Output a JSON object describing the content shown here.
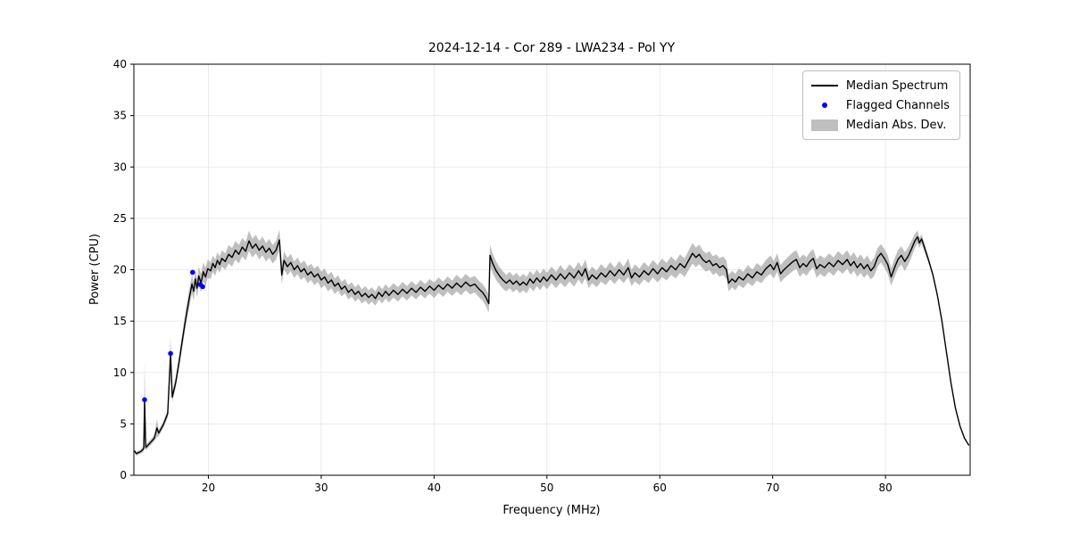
{
  "chart_data": {
    "type": "line",
    "title": "2024-12-14 - Cor 289 - LWA234 - Pol YY",
    "xlabel": "Frequency (MHz)",
    "ylabel": "Power (CPU)",
    "xlim": [
      13.4,
      87.5
    ],
    "ylim": [
      0,
      40
    ],
    "xticks": [
      20,
      30,
      40,
      50,
      60,
      70,
      80
    ],
    "yticks": [
      0,
      5,
      10,
      15,
      20,
      25,
      30,
      35,
      40
    ],
    "grid": true,
    "legend": [
      "Median Spectrum",
      "Flagged Channels",
      "Median Abs. Dev."
    ],
    "legend_position": "upper right",
    "colors": {
      "line": "#000000",
      "flagged": "#0000ff",
      "band": "#808080",
      "band_opacity": 0.5,
      "grid": "#e6e6e6",
      "spine": "#000000"
    },
    "series": {
      "median_spectrum_format": [
        "freq_mhz",
        "power_cpu",
        "mad_halfwidth"
      ],
      "median_spectrum": [
        [
          13.45,
          2.4,
          0
        ],
        [
          13.6,
          2.1,
          0.2
        ],
        [
          14.0,
          2.3,
          0.2
        ],
        [
          14.28,
          2.6,
          0.3
        ],
        [
          14.35,
          7.35,
          3.7
        ],
        [
          14.45,
          2.7,
          0.3
        ],
        [
          14.8,
          3.1,
          0.25
        ],
        [
          15.2,
          3.6,
          0.3
        ],
        [
          15.45,
          4.6,
          0.9
        ],
        [
          15.6,
          4.1,
          0.3
        ],
        [
          16.0,
          4.9,
          0.3
        ],
        [
          16.4,
          6.0,
          0.4
        ],
        [
          16.65,
          11.85,
          1.6
        ],
        [
          16.8,
          7.6,
          0.5
        ],
        [
          17.1,
          9.0,
          0.5
        ],
        [
          17.4,
          11.0,
          0.6
        ],
        [
          17.7,
          13.2,
          0.7
        ],
        [
          18.0,
          15.3,
          0.8
        ],
        [
          18.3,
          17.2,
          0.9
        ],
        [
          18.55,
          18.6,
          0.9
        ],
        [
          18.7,
          17.9,
          0.9
        ],
        [
          18.85,
          19.1,
          0.9
        ],
        [
          19.0,
          18.2,
          0.9
        ],
        [
          19.15,
          19.4,
          0.9
        ],
        [
          19.35,
          18.7,
          0.9
        ],
        [
          19.55,
          19.8,
          0.9
        ],
        [
          19.75,
          19.3,
          0.9
        ],
        [
          19.95,
          20.1,
          0.9
        ],
        [
          20.2,
          19.9,
          0.8
        ],
        [
          20.4,
          20.6,
          0.8
        ],
        [
          20.6,
          20.2,
          0.8
        ],
        [
          20.8,
          20.9,
          0.8
        ],
        [
          21.0,
          20.5,
          0.8
        ],
        [
          21.2,
          21.1,
          0.8
        ],
        [
          21.5,
          20.8,
          0.8
        ],
        [
          21.8,
          21.5,
          0.9
        ],
        [
          22.1,
          21.2,
          0.9
        ],
        [
          22.4,
          21.9,
          0.9
        ],
        [
          22.7,
          21.5,
          0.9
        ],
        [
          23.0,
          22.2,
          0.9
        ],
        [
          23.3,
          21.8,
          0.9
        ],
        [
          23.6,
          22.8,
          1.0
        ],
        [
          23.9,
          22.1,
          0.9
        ],
        [
          24.2,
          22.5,
          0.9
        ],
        [
          24.5,
          21.9,
          0.9
        ],
        [
          24.8,
          22.3,
          0.9
        ],
        [
          25.1,
          21.7,
          0.9
        ],
        [
          25.4,
          22.1,
          0.9
        ],
        [
          25.7,
          21.5,
          0.9
        ],
        [
          26.0,
          21.9,
          0.9
        ],
        [
          26.3,
          22.9,
          1.0
        ],
        [
          26.5,
          19.5,
          0.9
        ],
        [
          26.7,
          20.9,
          0.9
        ],
        [
          27.0,
          20.3,
          0.85
        ],
        [
          27.3,
          20.7,
          0.85
        ],
        [
          27.6,
          20.0,
          0.8
        ],
        [
          27.9,
          20.4,
          0.8
        ],
        [
          28.2,
          19.8,
          0.8
        ],
        [
          28.5,
          20.1,
          0.8
        ],
        [
          28.8,
          19.5,
          0.8
        ],
        [
          29.1,
          19.8,
          0.8
        ],
        [
          29.4,
          19.3,
          0.8
        ],
        [
          29.7,
          19.6,
          0.8
        ],
        [
          30.0,
          19.0,
          0.8
        ],
        [
          30.3,
          19.3,
          0.8
        ],
        [
          30.6,
          18.7,
          0.8
        ],
        [
          30.9,
          19.0,
          0.8
        ],
        [
          31.2,
          18.4,
          0.75
        ],
        [
          31.5,
          18.7,
          0.75
        ],
        [
          31.8,
          18.1,
          0.7
        ],
        [
          32.1,
          18.4,
          0.7
        ],
        [
          32.4,
          17.8,
          0.7
        ],
        [
          32.7,
          18.1,
          0.7
        ],
        [
          33.0,
          17.6,
          0.7
        ],
        [
          33.3,
          17.9,
          0.7
        ],
        [
          33.6,
          17.4,
          0.7
        ],
        [
          33.9,
          17.7,
          0.7
        ],
        [
          34.2,
          17.3,
          0.7
        ],
        [
          34.5,
          17.6,
          0.7
        ],
        [
          34.8,
          17.2,
          0.7
        ],
        [
          35.1,
          17.8,
          0.7
        ],
        [
          35.4,
          17.4,
          0.7
        ],
        [
          35.7,
          17.9,
          0.7
        ],
        [
          36.0,
          17.5,
          0.7
        ],
        [
          36.4,
          18.0,
          0.7
        ],
        [
          36.8,
          17.6,
          0.7
        ],
        [
          37.2,
          18.1,
          0.7
        ],
        [
          37.6,
          17.7,
          0.7
        ],
        [
          38.0,
          18.2,
          0.7
        ],
        [
          38.4,
          17.8,
          0.7
        ],
        [
          38.8,
          18.3,
          0.7
        ],
        [
          39.2,
          17.9,
          0.7
        ],
        [
          39.6,
          18.4,
          0.7
        ],
        [
          40.0,
          18.0,
          0.75
        ],
        [
          40.4,
          18.5,
          0.75
        ],
        [
          40.8,
          18.1,
          0.75
        ],
        [
          41.2,
          18.6,
          0.75
        ],
        [
          41.6,
          18.2,
          0.75
        ],
        [
          42.0,
          18.7,
          0.8
        ],
        [
          42.4,
          18.3,
          0.8
        ],
        [
          42.8,
          18.8,
          0.8
        ],
        [
          43.2,
          18.4,
          0.8
        ],
        [
          43.6,
          18.6,
          0.8
        ],
        [
          44.0,
          18.1,
          0.8
        ],
        [
          44.3,
          17.8,
          0.8
        ],
        [
          44.6,
          17.3,
          0.85
        ],
        [
          44.85,
          16.7,
          0.9
        ],
        [
          44.95,
          21.4,
          1.0
        ],
        [
          45.2,
          20.6,
          0.95
        ],
        [
          45.5,
          19.9,
          0.9
        ],
        [
          45.8,
          19.4,
          0.85
        ],
        [
          46.1,
          19.0,
          0.85
        ],
        [
          46.4,
          18.7,
          0.8
        ],
        [
          46.7,
          19.0,
          0.8
        ],
        [
          47.0,
          18.6,
          0.8
        ],
        [
          47.3,
          18.9,
          0.8
        ],
        [
          47.6,
          18.5,
          0.8
        ],
        [
          47.9,
          18.8,
          0.8
        ],
        [
          48.2,
          18.5,
          0.8
        ],
        [
          48.5,
          19.1,
          0.8
        ],
        [
          48.8,
          18.7,
          0.8
        ],
        [
          49.1,
          19.2,
          0.8
        ],
        [
          49.4,
          18.8,
          0.8
        ],
        [
          49.7,
          19.3,
          0.8
        ],
        [
          50.0,
          18.9,
          0.8
        ],
        [
          50.4,
          19.5,
          0.8
        ],
        [
          50.8,
          19.0,
          0.8
        ],
        [
          51.2,
          19.6,
          0.85
        ],
        [
          51.6,
          19.1,
          0.8
        ],
        [
          52.0,
          19.7,
          0.85
        ],
        [
          52.4,
          19.2,
          0.85
        ],
        [
          52.8,
          19.9,
          0.85
        ],
        [
          53.1,
          19.4,
          0.85
        ],
        [
          53.4,
          20.1,
          0.9
        ],
        [
          53.7,
          19.0,
          0.8
        ],
        [
          54.0,
          19.5,
          0.8
        ],
        [
          54.4,
          19.1,
          0.8
        ],
        [
          54.8,
          19.7,
          0.85
        ],
        [
          55.2,
          19.3,
          0.8
        ],
        [
          55.6,
          19.9,
          0.85
        ],
        [
          56.0,
          19.4,
          0.8
        ],
        [
          56.4,
          20.0,
          0.85
        ],
        [
          56.8,
          19.5,
          0.8
        ],
        [
          57.2,
          20.2,
          0.9
        ],
        [
          57.5,
          19.2,
          0.8
        ],
        [
          57.8,
          19.7,
          0.85
        ],
        [
          58.2,
          19.3,
          0.8
        ],
        [
          58.6,
          19.9,
          0.85
        ],
        [
          59.0,
          19.5,
          0.8
        ],
        [
          59.4,
          20.1,
          0.85
        ],
        [
          59.8,
          19.6,
          0.85
        ],
        [
          60.2,
          20.2,
          0.9
        ],
        [
          60.6,
          19.8,
          0.85
        ],
        [
          61.0,
          20.4,
          0.9
        ],
        [
          61.4,
          20.0,
          0.85
        ],
        [
          61.8,
          20.6,
          0.9
        ],
        [
          62.2,
          20.2,
          0.9
        ],
        [
          62.6,
          21.0,
          0.95
        ],
        [
          62.9,
          21.6,
          1.0
        ],
        [
          63.2,
          21.2,
          0.95
        ],
        [
          63.5,
          21.5,
          0.95
        ],
        [
          63.8,
          21.0,
          0.9
        ],
        [
          64.1,
          20.7,
          0.9
        ],
        [
          64.4,
          20.9,
          0.9
        ],
        [
          64.7,
          20.4,
          0.9
        ],
        [
          65.0,
          20.6,
          0.9
        ],
        [
          65.3,
          20.2,
          0.9
        ],
        [
          65.6,
          20.4,
          0.9
        ],
        [
          65.9,
          20.0,
          0.9
        ],
        [
          66.1,
          18.7,
          0.8
        ],
        [
          66.4,
          19.1,
          0.8
        ],
        [
          66.7,
          18.8,
          0.8
        ],
        [
          67.0,
          19.3,
          0.8
        ],
        [
          67.4,
          19.0,
          0.8
        ],
        [
          67.8,
          19.6,
          0.85
        ],
        [
          68.2,
          19.2,
          0.8
        ],
        [
          68.6,
          19.8,
          0.85
        ],
        [
          69.0,
          19.5,
          0.8
        ],
        [
          69.4,
          20.1,
          0.85
        ],
        [
          69.8,
          20.5,
          0.9
        ],
        [
          70.1,
          20.0,
          0.85
        ],
        [
          70.4,
          20.7,
          0.9
        ],
        [
          70.7,
          19.6,
          0.85
        ],
        [
          71.0,
          20.0,
          0.85
        ],
        [
          71.4,
          20.4,
          0.9
        ],
        [
          71.8,
          20.8,
          0.9
        ],
        [
          72.1,
          21.0,
          0.9
        ],
        [
          72.4,
          20.2,
          0.9
        ],
        [
          72.7,
          20.6,
          0.9
        ],
        [
          73.0,
          20.3,
          0.9
        ],
        [
          73.3,
          20.8,
          0.9
        ],
        [
          73.6,
          21.1,
          0.9
        ],
        [
          73.9,
          20.1,
          0.9
        ],
        [
          74.2,
          20.5,
          0.9
        ],
        [
          74.6,
          20.2,
          0.9
        ],
        [
          75.0,
          20.7,
          0.9
        ],
        [
          75.4,
          20.3,
          0.9
        ],
        [
          75.8,
          20.9,
          0.9
        ],
        [
          76.2,
          20.5,
          0.9
        ],
        [
          76.6,
          21.0,
          0.9
        ],
        [
          76.9,
          20.4,
          0.9
        ],
        [
          77.2,
          20.8,
          0.9
        ],
        [
          77.5,
          20.2,
          0.9
        ],
        [
          77.8,
          20.6,
          0.9
        ],
        [
          78.1,
          20.1,
          0.9
        ],
        [
          78.4,
          20.5,
          0.9
        ],
        [
          78.7,
          19.9,
          0.85
        ],
        [
          79.0,
          20.3,
          0.9
        ],
        [
          79.3,
          21.2,
          0.9
        ],
        [
          79.6,
          21.6,
          0.9
        ],
        [
          79.9,
          21.1,
          0.9
        ],
        [
          80.2,
          20.5,
          0.9
        ],
        [
          80.5,
          19.3,
          0.85
        ],
        [
          80.8,
          20.2,
          0.9
        ],
        [
          81.1,
          21.0,
          0.9
        ],
        [
          81.4,
          21.4,
          0.9
        ],
        [
          81.7,
          20.8,
          0.9
        ],
        [
          82.0,
          21.3,
          0.85
        ],
        [
          82.3,
          22.0,
          0.8
        ],
        [
          82.6,
          22.8,
          0.7
        ],
        [
          82.85,
          23.2,
          0.6
        ],
        [
          83.0,
          22.6,
          0.5
        ],
        [
          83.2,
          23.0,
          0.45
        ],
        [
          83.5,
          22.0,
          0.4
        ],
        [
          83.8,
          21.0,
          0.3
        ],
        [
          84.2,
          19.5,
          0.2
        ],
        [
          84.6,
          17.5,
          0.15
        ],
        [
          85.0,
          15.0,
          0.1
        ],
        [
          85.4,
          12.0,
          0.1
        ],
        [
          85.8,
          9.0,
          0.05
        ],
        [
          86.2,
          6.5,
          0.05
        ],
        [
          86.6,
          4.8,
          0
        ],
        [
          87.0,
          3.6,
          0
        ],
        [
          87.4,
          2.9,
          0
        ]
      ],
      "flagged_channels": [
        [
          14.35,
          7.35
        ],
        [
          16.65,
          11.85
        ],
        [
          18.6,
          19.75
        ],
        [
          19.3,
          18.55
        ],
        [
          19.5,
          18.35
        ]
      ]
    }
  }
}
